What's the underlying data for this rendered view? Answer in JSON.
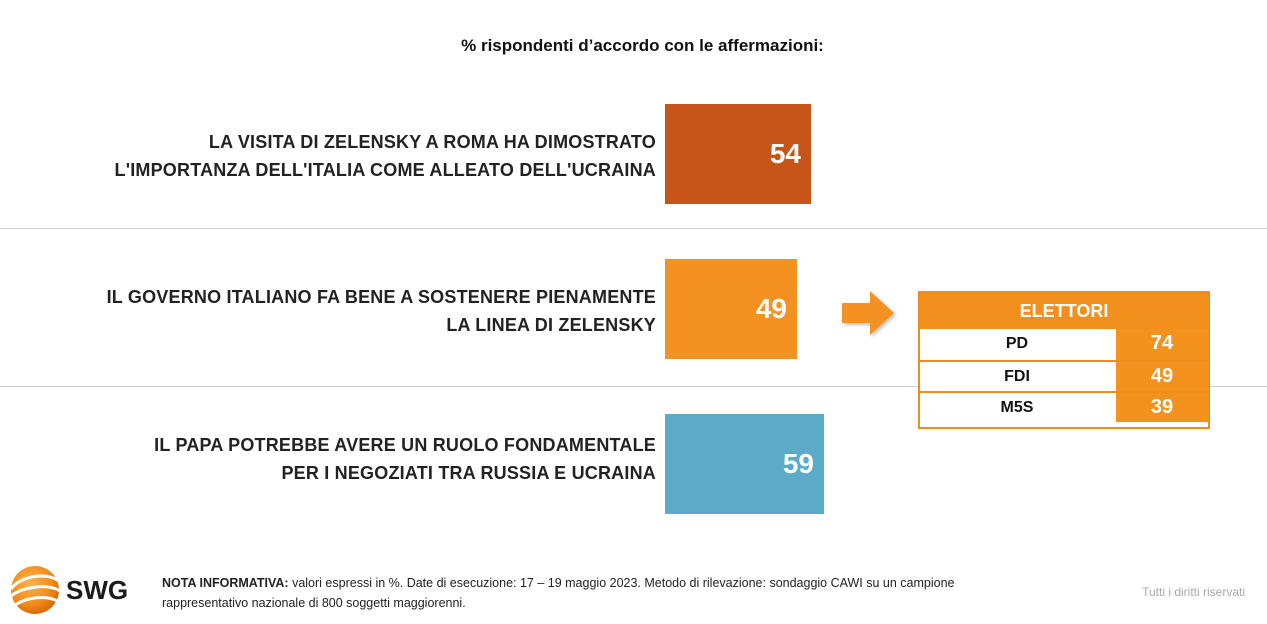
{
  "chart_data": {
    "type": "bar",
    "title": "% rispondenti d’accordo con le affermazioni:",
    "orientation": "horizontal",
    "categories": [
      "LA VISITA DI ZELENSKY A ROMA HA DIMOSTRATO L'IMPORTANZA DELL'ITALIA COME ALLEATO DELL'UCRAINA",
      "IL GOVERNO ITALIANO FA BENE A SOSTENERE PIENAMENTE LA LINEA DI ZELENSKY",
      "IL PAPA POTREBBE AVERE UN RUOLO FONDAMENTALE PER I NEGOZIATI TRA RUSSIA E UCRAINA"
    ],
    "category_lines": [
      [
        "LA VISITA DI ZELENSKY A ROMA HA DIMOSTRATO",
        "L'IMPORTANZA DELL'ITALIA COME ALLEATO DELL'UCRAINA"
      ],
      [
        "IL GOVERNO ITALIANO FA BENE A SOSTENERE PIENAMENTE",
        "LA LINEA DI ZELENSKY"
      ],
      [
        "IL PAPA POTREBBE AVERE UN RUOLO FONDAMENTALE",
        "PER I NEGOZIATI TRA RUSSIA E UCRAINA"
      ]
    ],
    "values": [
      54,
      49,
      59
    ],
    "colors": [
      "#c65517",
      "#f39220",
      "#5aaac8"
    ],
    "grid": false,
    "legend": "none",
    "breakdown": {
      "title": "ELETTORI",
      "applies_to_index": 1,
      "categories": [
        "PD",
        "FDI",
        "M5S"
      ],
      "values": [
        74,
        49,
        39
      ],
      "color": "#f39220"
    }
  },
  "footer": {
    "logo_text": "SWG",
    "note_label": "NOTA INFORMATIVA:",
    "note_text": " valori espressi in %. Date di esecuzione: 17 – 19 maggio 2023. Metodo di rilevazione: sondaggio CAWI su un campione",
    "note_text_2": "rappresentativo nazionale di 800 soggetti maggiorenni.",
    "rights": "Tutti i diritti riservati"
  }
}
